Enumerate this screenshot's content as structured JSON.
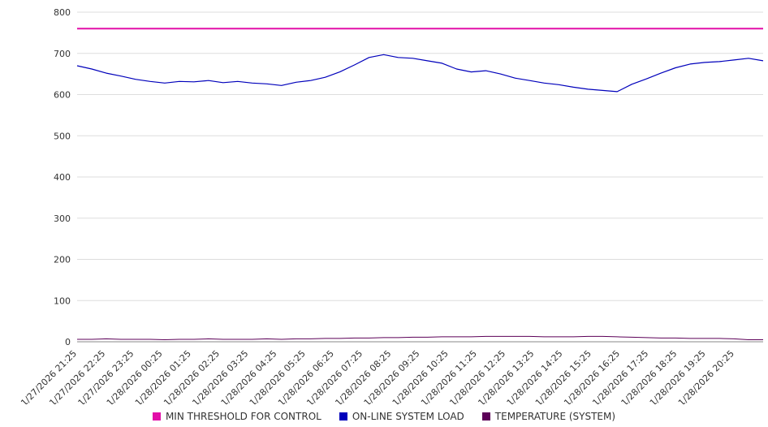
{
  "chart_data": {
    "type": "line",
    "title": "",
    "xlabel": "",
    "ylabel": "",
    "ylim": [
      0,
      800
    ],
    "yticks": [
      0,
      100,
      200,
      300,
      400,
      500,
      600,
      700,
      800
    ],
    "grid": true,
    "legend_position": "bottom",
    "x_labels": [
      "1/27/2026 21:25",
      "1/27/2026 22:25",
      "1/27/2026 23:25",
      "1/28/2026 00:25",
      "1/28/2026 01:25",
      "1/28/2026 02:25",
      "1/28/2026 03:25",
      "1/28/2026 04:25",
      "1/28/2026 05:25",
      "1/28/2026 06:25",
      "1/28/2026 07:25",
      "1/28/2026 08:25",
      "1/28/2026 09:25",
      "1/28/2026 10:25",
      "1/28/2026 11:25",
      "1/28/2026 12:25",
      "1/28/2026 13:25",
      "1/28/2026 14:25",
      "1/28/2026 15:25",
      "1/28/2026 16:25",
      "1/28/2026 17:25",
      "1/28/2026 18:25",
      "1/28/2026 19:25",
      "1/28/2026 20:25"
    ],
    "series": [
      {
        "name": "MIN THRESHOLD FOR CONTROL",
        "color": "#e20fa8",
        "width": 2,
        "values": [
          760,
          760
        ]
      },
      {
        "name": "ON-LINE SYSTEM LOAD",
        "color": "#0000bb",
        "width": 1.2,
        "values": [
          670,
          662,
          652,
          645,
          637,
          632,
          628,
          632,
          631,
          634,
          629,
          632,
          628,
          626,
          622,
          630,
          634,
          642,
          655,
          672,
          690,
          697,
          690,
          688,
          682,
          676,
          662,
          655,
          658,
          650,
          640,
          634,
          628,
          624,
          618,
          613,
          610,
          607,
          625,
          638,
          652,
          665,
          674,
          678,
          680,
          684,
          688,
          682
        ]
      },
      {
        "name": "TEMPERATURE (SYSTEM)",
        "color": "#5c0058",
        "width": 1,
        "values": [
          6,
          6,
          7,
          6,
          6,
          6,
          5,
          6,
          6,
          7,
          6,
          6,
          6,
          7,
          6,
          7,
          7,
          8,
          8,
          9,
          9,
          10,
          10,
          11,
          11,
          12,
          12,
          12,
          13,
          13,
          13,
          13,
          12,
          12,
          12,
          13,
          13,
          12,
          11,
          10,
          9,
          9,
          8,
          8,
          8,
          7,
          5,
          5
        ]
      }
    ]
  }
}
